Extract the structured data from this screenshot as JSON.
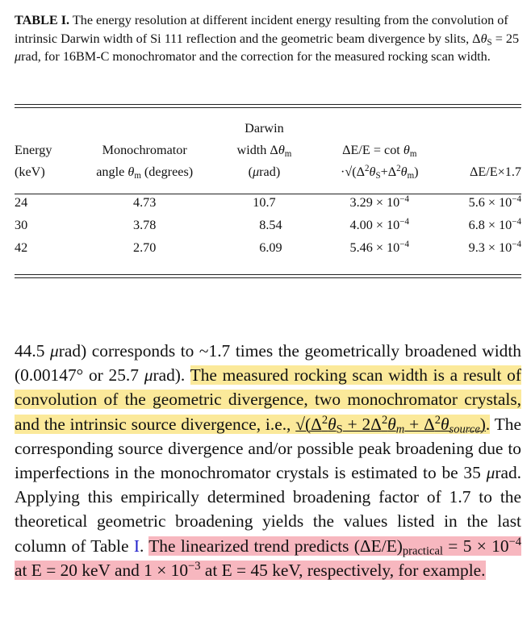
{
  "caption": {
    "label": "TABLE I.",
    "text": "The energy resolution at different incident energy resulting from the convolution of intrinsic Darwin width of Si 111 reflection and the geometric beam divergence by slits, Δθ_S = 25 μrad, for 16BM-C monochromator and the correction for the measured rocking scan width."
  },
  "table": {
    "headers": [
      [
        "",
        "",
        "Darwin",
        "",
        ""
      ],
      [
        "Energy",
        "Monochromator",
        "width Δθm",
        "ΔE/E = cot θm",
        ""
      ],
      [
        "(keV)",
        "angle θm (degrees)",
        "(μrad)",
        "·√(Δ²θS+Δ²θm)",
        "ΔE/E×1.7"
      ]
    ],
    "rows": [
      [
        "24",
        "4.73",
        "10.7",
        "3.29 × 10−4",
        "5.6 × 10−4"
      ],
      [
        "30",
        "3.78",
        "8.54",
        "4.00 × 10−4",
        "6.8 × 10−4"
      ],
      [
        "42",
        "2.70",
        "6.09",
        "5.46 × 10−4",
        "9.3 × 10−4"
      ]
    ]
  },
  "paragraph": {
    "p1": "44.5 μrad) corresponds to ~1.7 times the geometrically broadened width (0.00147° or 25.7 μrad).",
    "h1": "The measured rocking scan width is a result of convolution of the geometric divergence, two monochromator crystals, and the intrinsic source divergence, i.e., √(Δ²θS + 2Δ²θm + Δ²θsource).",
    "p2": "The corresponding source divergence and/or possible peak broadening due to imperfections in the monochromator crystals is estimated to be 35 μrad. Applying this empirically determined broadening factor of 1.7 to the theoretical geometric broadening yields the values listed in the last column of Table",
    "table_ref": "I",
    "h2": "The linearized trend predicts (ΔE/E)practical = 5 × 10−4 at E = 20 keV and 1 × 10−3 at E = 45 keV, respectively, for example."
  },
  "colors": {
    "highlight_yellow": "#fbe99a",
    "highlight_pink": "#f7b7bf",
    "link_blue": "#2222cc"
  }
}
